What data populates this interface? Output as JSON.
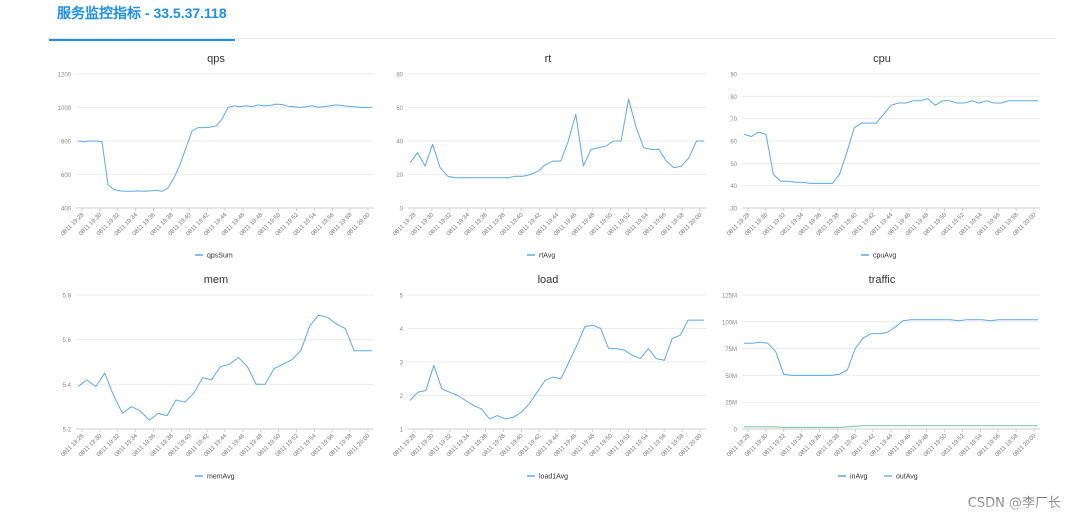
{
  "header": {
    "title": "服务监控指标 - 33.5.37.118"
  },
  "watermark": "CSDN @李厂长",
  "time_labels": [
    "0811 19:28",
    "0811 19:30",
    "0811 19:32",
    "0811 19:34",
    "0811 19:36",
    "0811 19:38",
    "0811 19:40",
    "0811 19:42",
    "0811 19:44",
    "0811 19:46",
    "0811 19:48",
    "0811 19:50",
    "0811 19:52",
    "0811 19:54",
    "0811 19:56",
    "0811 19:58",
    "0811 20:00"
  ],
  "chart_data": [
    {
      "id": "qps",
      "type": "line",
      "title": "qps",
      "ylim": [
        400,
        1200
      ],
      "yticks": [
        "400",
        "600",
        "800",
        "1000",
        "1200"
      ],
      "series": [
        {
          "name": "qpsSum",
          "color": "#5aa9ef",
          "values": [
            800,
            795,
            800,
            800,
            795,
            540,
            510,
            502,
            500,
            500,
            502,
            500,
            502,
            505,
            500,
            520,
            580,
            660,
            760,
            860,
            880,
            880,
            882,
            890,
            930,
            1000,
            1010,
            1005,
            1010,
            1005,
            1015,
            1010,
            1012,
            1020,
            1018,
            1008,
            1005,
            1000,
            1005,
            1010,
            1002,
            1005,
            1010,
            1015,
            1012,
            1008,
            1005,
            1002,
            1000,
            1002
          ]
        }
      ]
    },
    {
      "id": "rt",
      "type": "line",
      "title": "rt",
      "ylim": [
        0,
        80
      ],
      "yticks": [
        "0",
        "20",
        "40",
        "60",
        "80"
      ],
      "series": [
        {
          "name": "rtAvg",
          "color": "#5aa9ef",
          "values": [
            27,
            33,
            25,
            38,
            24,
            19,
            18,
            18,
            18,
            18,
            18,
            18,
            18,
            18,
            19,
            19,
            20,
            22,
            26,
            28,
            28,
            40,
            56,
            25,
            35,
            36,
            37,
            40,
            40,
            65,
            48,
            36,
            35,
            35,
            28,
            24,
            25,
            30,
            40,
            40
          ]
        }
      ]
    },
    {
      "id": "cpu",
      "type": "line",
      "title": "cpu",
      "ylim": [
        30,
        90
      ],
      "yticks": [
        "30",
        "40",
        "50",
        "60",
        "70",
        "80",
        "90"
      ],
      "series": [
        {
          "name": "cpuAvg",
          "color": "#5aa9ef",
          "values": [
            63,
            62,
            64,
            63,
            45,
            42,
            42,
            41.5,
            41.5,
            41,
            41,
            41,
            41,
            45,
            55,
            66,
            68,
            68,
            68,
            72,
            76,
            77,
            77,
            78,
            78,
            79,
            76,
            78,
            78,
            77,
            77,
            78,
            77,
            78,
            77,
            77,
            78,
            78,
            78,
            78,
            78
          ]
        }
      ]
    },
    {
      "id": "mem",
      "type": "line",
      "title": "mem",
      "ylim": [
        5.2,
        5.8
      ],
      "yticks": [
        "5.2",
        "5.4",
        "5.6",
        "5.8"
      ],
      "series": [
        {
          "name": "memAvg",
          "color": "#5aa9ef",
          "values": [
            5.39,
            5.42,
            5.39,
            5.45,
            5.35,
            5.27,
            5.3,
            5.28,
            5.24,
            5.27,
            5.26,
            5.33,
            5.32,
            5.36,
            5.43,
            5.42,
            5.48,
            5.49,
            5.52,
            5.48,
            5.4,
            5.4,
            5.47,
            5.49,
            5.51,
            5.55,
            5.66,
            5.71,
            5.7,
            5.67,
            5.65,
            5.55,
            5.55,
            5.55
          ]
        }
      ]
    },
    {
      "id": "load",
      "type": "line",
      "title": "load",
      "ylim": [
        1,
        5
      ],
      "yticks": [
        "1",
        "2",
        "3",
        "4",
        "5"
      ],
      "series": [
        {
          "name": "load1Avg",
          "color": "#5aa9ef",
          "values": [
            1.85,
            2.1,
            2.15,
            2.9,
            2.2,
            2.1,
            2.0,
            1.85,
            1.7,
            1.6,
            1.3,
            1.4,
            1.3,
            1.35,
            1.5,
            1.75,
            2.1,
            2.45,
            2.55,
            2.5,
            3.0,
            3.5,
            4.05,
            4.1,
            4.0,
            3.4,
            3.4,
            3.35,
            3.2,
            3.1,
            3.4,
            3.1,
            3.05,
            3.7,
            3.8,
            4.25,
            4.25,
            4.25
          ]
        }
      ]
    },
    {
      "id": "traffic",
      "type": "line",
      "title": "traffic",
      "ylim": [
        0,
        125
      ],
      "yticks": [
        "0",
        "25M",
        "50M",
        "75M",
        "100M",
        "125M"
      ],
      "series": [
        {
          "name": "inAvg",
          "color": "#5aa9ef",
          "values": [
            80,
            80,
            81,
            80,
            72,
            51,
            50,
            50,
            50,
            50,
            50,
            50,
            51,
            55,
            75,
            85,
            89,
            89,
            90,
            95,
            101,
            102,
            102,
            102,
            102,
            102,
            102,
            101,
            102,
            102,
            102,
            101,
            102,
            102,
            102,
            102,
            102,
            102
          ]
        },
        {
          "name": "outAvg",
          "color": "#6cc9a0",
          "values": [
            2,
            2,
            2,
            2,
            2,
            1.5,
            1.5,
            1.5,
            1.5,
            1.5,
            1.5,
            1.5,
            1.5,
            2,
            2.5,
            3,
            3,
            3,
            3,
            3,
            3,
            3,
            3,
            3,
            3,
            3,
            3,
            3,
            3,
            3,
            3,
            3,
            3,
            3,
            3,
            3,
            3,
            3
          ]
        }
      ]
    }
  ]
}
